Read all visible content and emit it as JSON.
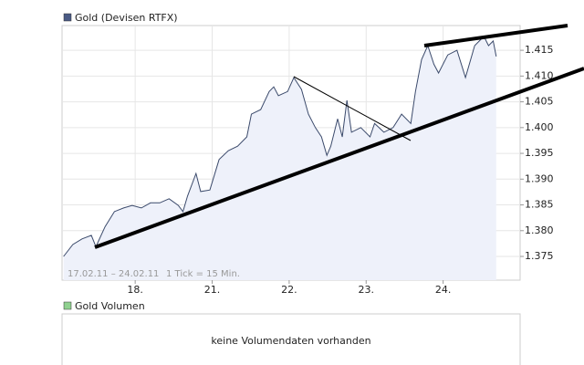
{
  "chart_data": {
    "type": "area",
    "series": [
      {
        "name": "Gold (Devisen RTFX)",
        "color": "#3b4a6b",
        "fill": "#eef1fa",
        "values": [
          1.375,
          1.3773,
          1.3784,
          1.3791,
          1.3769,
          1.3808,
          1.3837,
          1.3844,
          1.3849,
          1.3844,
          1.3854,
          1.3854,
          1.3862,
          1.3849,
          1.3837,
          1.3867,
          1.3911,
          1.3876,
          1.3879,
          1.3938,
          1.3955,
          1.3964,
          1.3982,
          1.4026,
          1.4035,
          1.407,
          1.4079,
          1.4062,
          1.407,
          1.4097,
          1.4074,
          1.4026,
          1.4,
          1.3982,
          1.3946,
          1.3964,
          1.4017,
          1.3982,
          1.4053,
          1.3991,
          1.4,
          1.3982,
          1.4008,
          1.3991,
          1.4,
          1.4026,
          1.4008,
          1.407,
          1.4132,
          1.4159,
          1.4123,
          1.4106,
          1.4141,
          1.415,
          1.4097,
          1.4159,
          1.4177,
          1.4159,
          1.4168,
          1.4138
        ]
      }
    ],
    "x": [
      -0.93,
      -0.81,
      -0.69,
      -0.57,
      -0.51,
      -0.39,
      -0.27,
      -0.15,
      -0.04,
      0.08,
      0.2,
      0.32,
      0.44,
      0.56,
      0.62,
      0.68,
      0.79,
      0.85,
      0.97,
      1.09,
      1.21,
      1.33,
      1.45,
      1.51,
      1.63,
      1.74,
      1.8,
      1.86,
      1.98,
      2.06,
      2.16,
      2.25,
      2.34,
      2.42,
      2.49,
      2.54,
      2.63,
      2.69,
      2.75,
      2.81,
      2.93,
      3.05,
      3.11,
      3.23,
      3.35,
      3.46,
      3.58,
      3.64,
      3.72,
      3.8,
      3.88,
      3.94,
      4.06,
      4.18,
      4.29,
      4.41,
      4.53,
      4.59,
      4.65,
      4.69
    ],
    "xlim": [
      -0.95,
      5.0
    ],
    "xticks": [
      {
        "value": 0,
        "label": "18."
      },
      {
        "value": 1,
        "label": "21."
      },
      {
        "value": 2,
        "label": "22."
      },
      {
        "value": 3,
        "label": "23."
      },
      {
        "value": 4,
        "label": "24."
      }
    ],
    "ylim": [
      1.3704,
      1.4198
    ],
    "yticks": [
      1.375,
      {
        "value": 1.38,
        "label": "1.380"
      },
      1.385,
      {
        "value": 1.39,
        "label": "1.390"
      },
      1.395,
      {
        "value": 1.4,
        "label": "1.400"
      },
      1.405,
      {
        "value": 1.41,
        "label": "1.410"
      },
      1.415
    ],
    "grid": true,
    "annotations": [
      "17.02.11 – 24.02.11",
      "1 Tick = 15 Min."
    ]
  },
  "volume_panel": {
    "legend": "Gold Volumen",
    "message": "keine Volumendaten vorhanden"
  }
}
